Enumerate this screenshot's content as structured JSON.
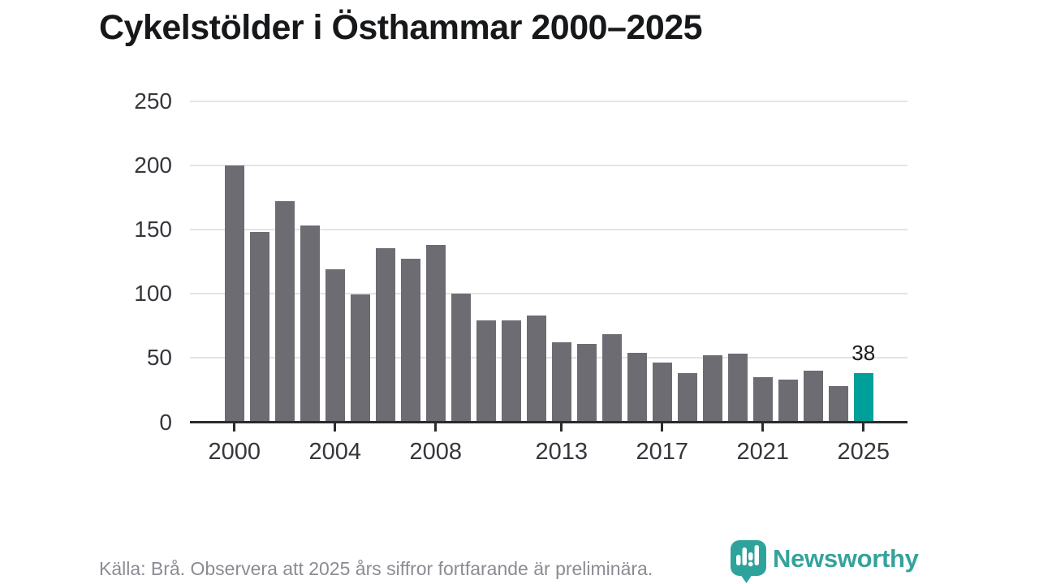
{
  "title": "Cykelstölder i Östhammar 2000–2025",
  "caption": "Källa: Brå. Observera att 2025 års siffror fortfarande är preliminära.",
  "branding": {
    "logo_text": "Newsworthy",
    "logo_icon": "newsworthy-chart-pin-icon"
  },
  "colors": {
    "bar": "#6c6c72",
    "highlight": "#00a09a",
    "grid": "#e4e4e6",
    "axis": "#2b2b2e",
    "tick_label": "#36373c",
    "title": "#16181a",
    "caption": "#8b8c93",
    "value_label": "#1a1a1a",
    "logo": "#35a29c"
  },
  "chart_data": {
    "type": "bar",
    "title": "Cykelstölder i Östhammar 2000–2025",
    "xlabel": "",
    "ylabel": "",
    "categories": [
      2000,
      2001,
      2002,
      2003,
      2004,
      2005,
      2006,
      2007,
      2008,
      2009,
      2010,
      2011,
      2012,
      2013,
      2014,
      2015,
      2016,
      2017,
      2018,
      2019,
      2020,
      2021,
      2022,
      2023,
      2024,
      2025
    ],
    "values": [
      200,
      148,
      172,
      153,
      119,
      99,
      135,
      127,
      138,
      100,
      79,
      79,
      83,
      62,
      61,
      68,
      54,
      46,
      38,
      52,
      53,
      35,
      33,
      40,
      28,
      38
    ],
    "highlight_category": 2025,
    "annotation": {
      "category": 2025,
      "text": "38"
    },
    "ylim": [
      0,
      250
    ],
    "yticks": [
      0,
      50,
      100,
      150,
      200,
      250
    ],
    "xticks": [
      2000,
      2004,
      2008,
      2013,
      2017,
      2021,
      2025
    ],
    "grid": true,
    "legend": false
  }
}
